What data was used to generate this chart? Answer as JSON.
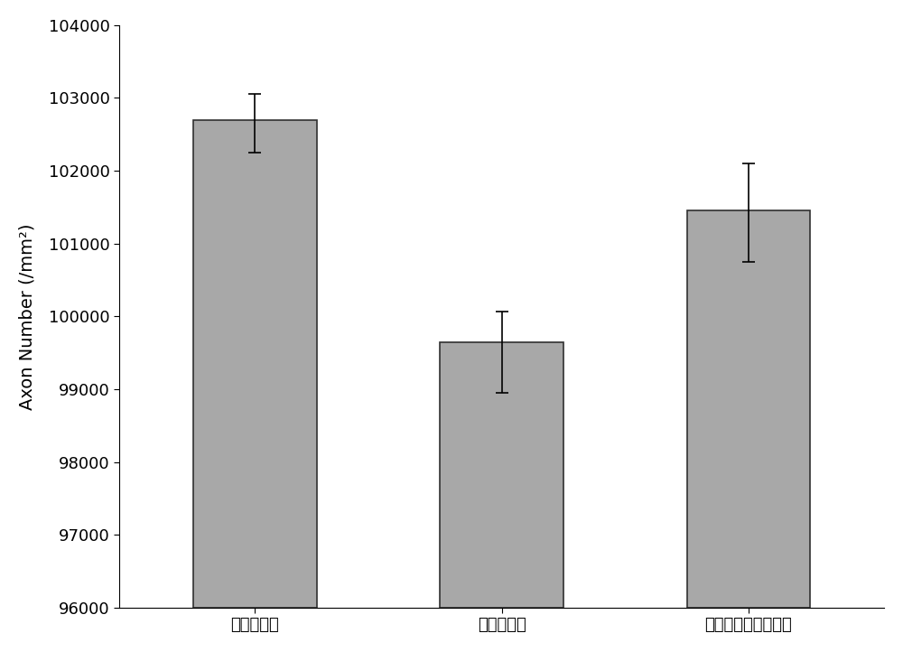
{
  "categories": [
    "自体神经组",
    "普通导管组",
    "生物墨水打印导管组"
  ],
  "values": [
    102700,
    99650,
    101450
  ],
  "errors_upper": [
    350,
    420,
    650
  ],
  "errors_lower": [
    450,
    700,
    700
  ],
  "bar_color_base": "#a8a8a8",
  "bar_color_noise_pink": "#c8a0c8",
  "bar_edge_color": "#303030",
  "bar_width": 0.5,
  "ylabel": "Axon Number (/mm²)",
  "ylim": [
    96000,
    104000
  ],
  "yticks": [
    96000,
    97000,
    98000,
    99000,
    100000,
    101000,
    102000,
    103000,
    104000
  ],
  "background_color": "#ffffff",
  "bar_positions": [
    1,
    2,
    3
  ],
  "xlim": [
    0.45,
    3.55
  ],
  "label_fontsize": 14,
  "tick_fontsize": 13,
  "noise_density": 0.35,
  "noise_seed": 42
}
